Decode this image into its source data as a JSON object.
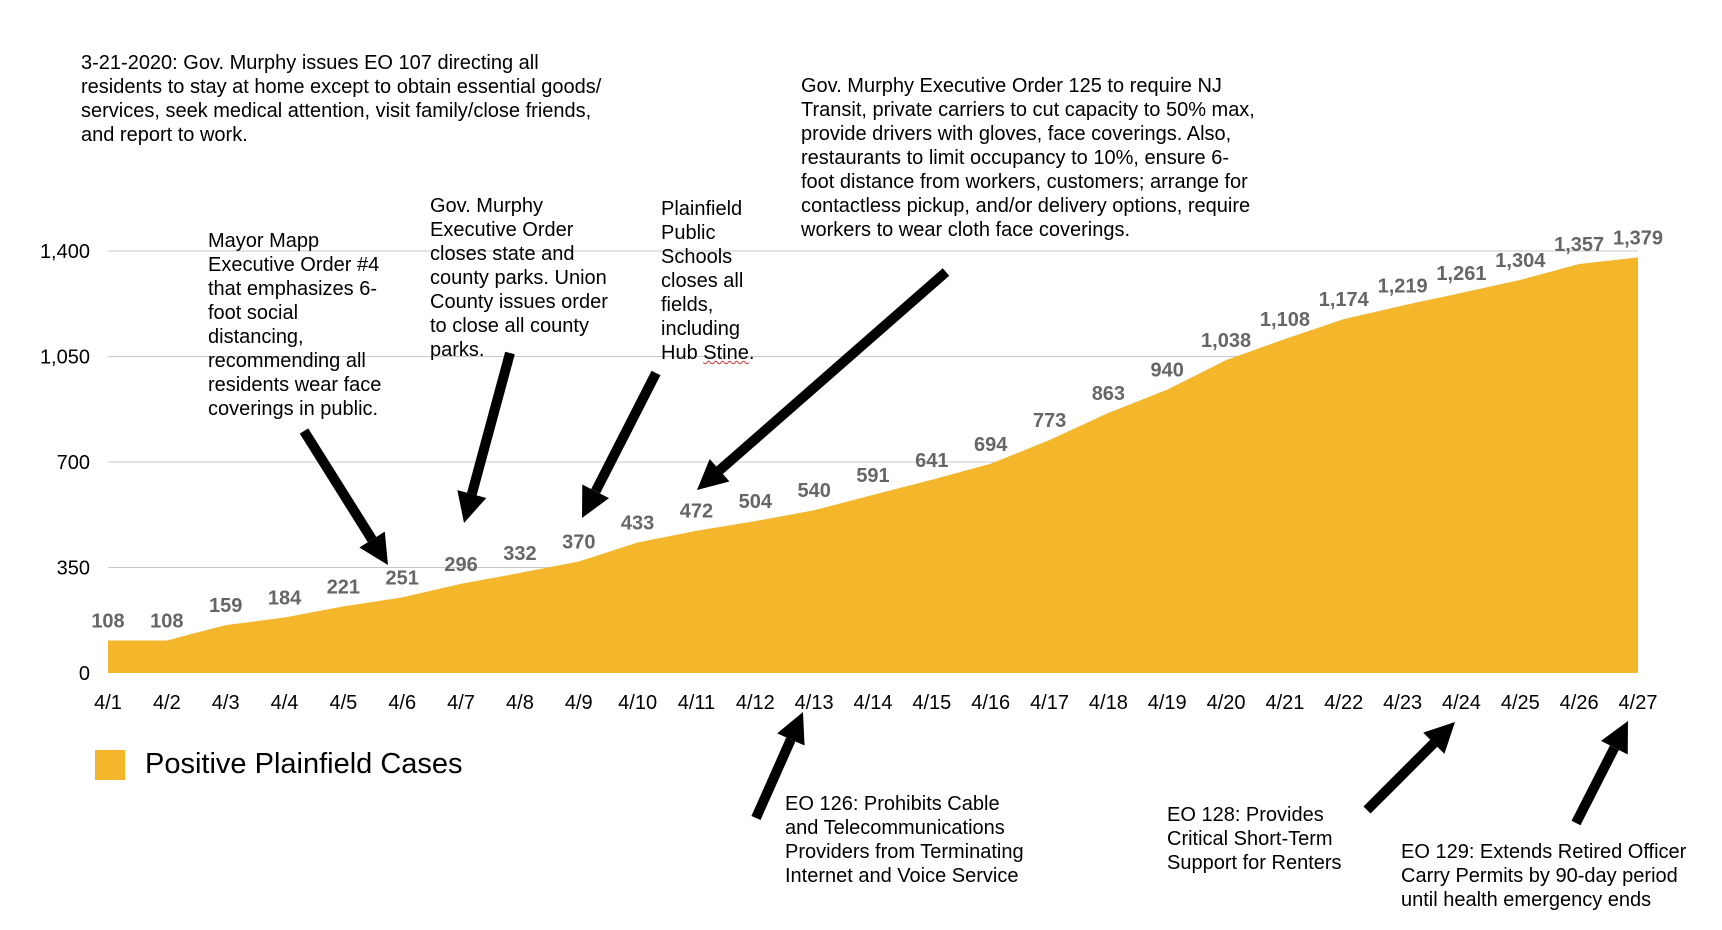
{
  "chart_data": {
    "type": "area",
    "categories": [
      "4/1",
      "4/2",
      "4/3",
      "4/4",
      "4/5",
      "4/6",
      "4/7",
      "4/8",
      "4/9",
      "4/10",
      "4/11",
      "4/12",
      "4/13",
      "4/14",
      "4/15",
      "4/16",
      "4/17",
      "4/18",
      "4/19",
      "4/20",
      "4/21",
      "4/22",
      "4/23",
      "4/24",
      "4/25",
      "4/26",
      "4/27"
    ],
    "series": [
      {
        "name": "Positive Plainfield Cases",
        "values": [
          108,
          108,
          159,
          184,
          221,
          251,
          296,
          332,
          370,
          433,
          472,
          504,
          540,
          591,
          641,
          694,
          773,
          863,
          940,
          1038,
          1108,
          1174,
          1219,
          1261,
          1304,
          1357,
          1379
        ],
        "labels": [
          "108",
          "108",
          "159",
          "184",
          "221",
          "251",
          "296",
          "332",
          "370",
          "433",
          "472",
          "504",
          "540",
          "591",
          "641",
          "694",
          "773",
          "863",
          "940",
          "1,038",
          "1,108",
          "1,174",
          "1,219",
          "1,261",
          "1,304",
          "1,357",
          "1,379"
        ]
      }
    ],
    "ylim": [
      0,
      1400
    ],
    "yticks": [
      0,
      350,
      700,
      1050,
      1400
    ],
    "ytick_labels": [
      "0",
      "350",
      "700",
      "1,050",
      "1,400"
    ],
    "grid": true,
    "legend_placement": "bottom-left",
    "colors": {
      "area": "#f4b72b",
      "data_label": "#666666",
      "gridline": "#c8c8c8",
      "arrow": "#000000"
    }
  },
  "annotations": {
    "eo107": "3-21-2020: Gov. Murphy issues EO 107 directing all\nresidents to stay at home except to obtain essential goods/\nservices, seek medical attention, visit family/close friends,\nand report to work.",
    "mapp_eo4": "Mayor Mapp\nExecutive Order #4\nthat emphasizes 6-\nfoot social\ndistancing,\nrecommending all\nresidents wear face\ncoverings in public.",
    "murphy_parks": "Gov. Murphy\nExecutive Order\ncloses state and\ncounty parks.  Union\nCounty issues order\nto close all county\nparks.",
    "pps_fields": "Plainfield\nPublic\nSchools\ncloses all\nfields,\nincluding\nHub ",
    "pps_fields_underlined": "Stine",
    "pps_fields_end": ".",
    "eo125": "Gov. Murphy Executive Order 125 to require NJ\nTransit, private carriers to cut capacity to 50% max,\nprovide drivers with gloves, face coverings.  Also,\nrestaurants to limit occupancy to 10%, ensure 6-\nfoot distance from workers, customers; arrange for\ncontactless pickup, and/or delivery options, require\nworkers to wear cloth face coverings.",
    "eo126": "EO 126: Prohibits Cable\nand Telecommunications\nProviders from Terminating\nInternet and Voice Service",
    "eo128": "EO 128: Provides\nCritical Short-Term\nSupport for Renters",
    "eo129": "EO 129: Extends Retired Officer\nCarry Permits by 90-day period\nuntil health emergency ends"
  },
  "legend": {
    "label": "Positive Plainfield Cases"
  }
}
